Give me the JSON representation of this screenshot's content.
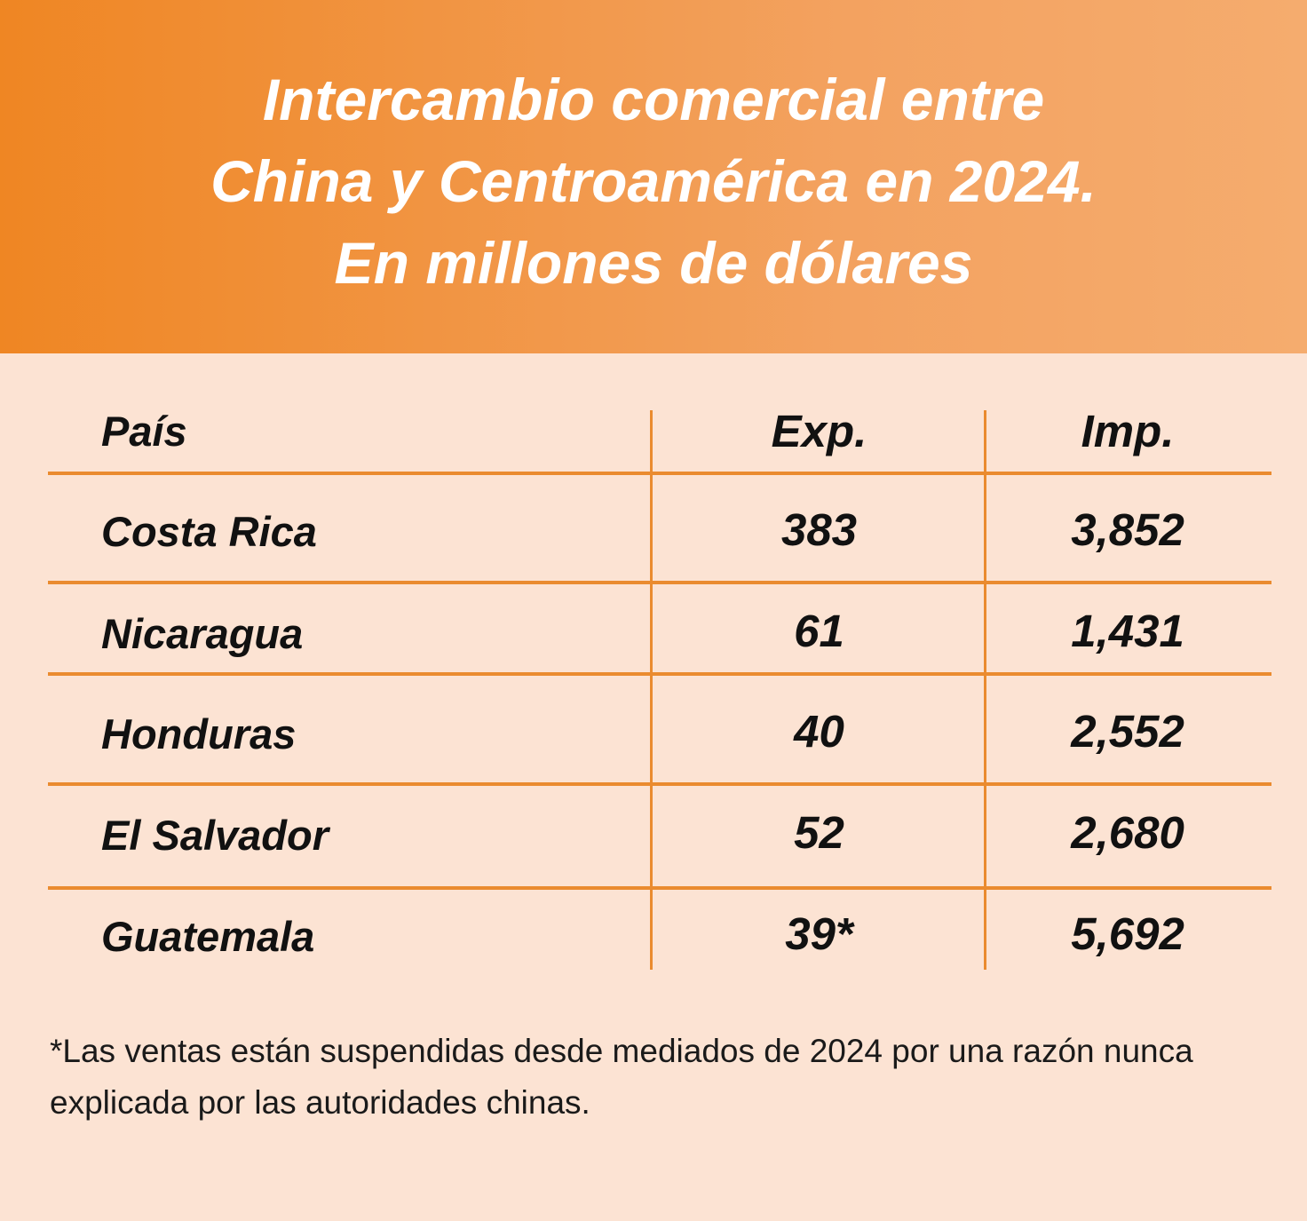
{
  "title": {
    "line1": "Intercambio comercial entre",
    "line2": "China y Centroamérica en 2024.",
    "line3": "En millones de dólares"
  },
  "chart_data": {
    "type": "table",
    "title": "Intercambio comercial entre China y Centroamérica en 2024. En millones de dólares",
    "columns": [
      "País",
      "Exp.",
      "Imp."
    ],
    "rows": [
      {
        "country": "Costa Rica",
        "exp": "383",
        "imp": "3,852"
      },
      {
        "country": "Nicaragua",
        "exp": "61",
        "imp": "1,431"
      },
      {
        "country": "Honduras",
        "exp": "40",
        "imp": "2,552"
      },
      {
        "country": "El Salvador",
        "exp": "52",
        "imp": "2,680"
      },
      {
        "country": "Guatemala",
        "exp": "39*",
        "imp": "5,692"
      }
    ]
  },
  "footnote": {
    "line1": "*Las ventas están suspendidas desde mediados de 2024 por una razón nunca",
    "line2": "explicada por las autoridades chinas."
  },
  "colors": {
    "header_start": "#ef8623",
    "header_end": "#f5ac6e",
    "background": "#fce3d3",
    "rule": "#ea8b2f"
  }
}
